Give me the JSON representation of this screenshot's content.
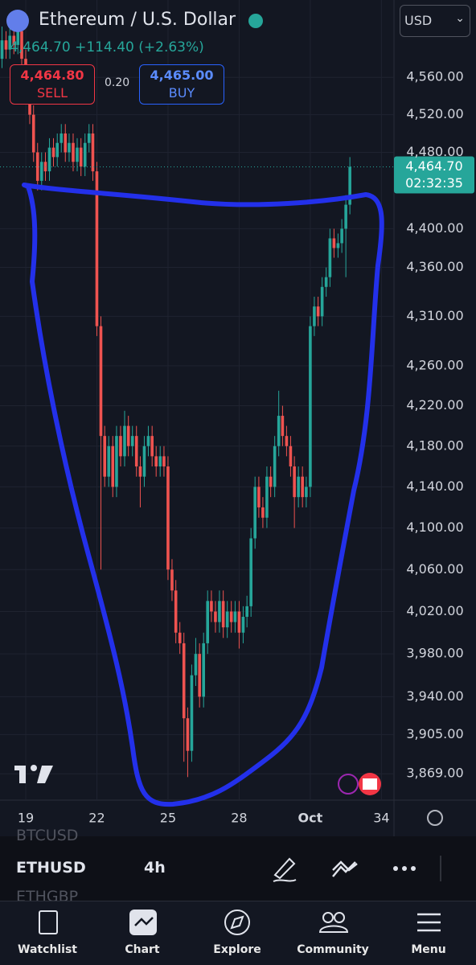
{
  "header": {
    "title": "Ethereum / U.S. Dollar",
    "currency": "USD",
    "last": "4,464.70",
    "change": "+114.40",
    "change_pct": "(+2.63%)",
    "sell_price": "4,464.80",
    "sell_label": "SELL",
    "spread": "0.20",
    "buy_price": "4,465.00",
    "buy_label": "BUY"
  },
  "price_marker": {
    "price": "4,464.70",
    "countdown": "02:32:35"
  },
  "chart_data": {
    "type": "candlestick",
    "log_scale": true,
    "grid": true,
    "up_color": "#26a69a",
    "down_color": "#ef5350",
    "x": [
      18,
      18.17,
      18.33,
      18.5,
      18.67,
      18.83,
      19,
      19.17,
      19.33,
      19.5,
      19.67,
      19.83,
      20,
      20.17,
      20.33,
      20.5,
      20.67,
      20.83,
      21,
      21.17,
      21.33,
      21.5,
      21.67,
      21.83,
      22,
      22.17,
      22.33,
      22.5,
      22.67,
      22.83,
      23,
      23.17,
      23.33,
      23.5,
      23.67,
      23.83,
      24,
      24.17,
      24.33,
      24.5,
      24.67,
      24.83,
      25,
      25.17,
      25.33,
      25.5,
      25.67,
      25.83,
      26,
      26.17,
      26.33,
      26.5,
      26.67,
      26.83,
      27,
      27.17,
      27.33,
      27.5,
      27.67,
      27.83,
      28,
      28.17,
      28.33,
      28.5,
      28.67,
      28.83,
      29,
      29.17,
      29.33,
      29.5,
      29.67,
      29.83,
      30,
      30.17,
      30.33,
      30.5,
      30.67,
      30.83,
      31,
      31.17,
      31.33,
      31.5,
      31.67,
      31.83,
      32,
      32.17,
      32.33,
      32.5,
      32.67
    ],
    "open": [
      4580,
      4600,
      4590,
      4605,
      4595,
      4610,
      4580,
      4560,
      4520,
      4480,
      4450,
      4470,
      4460,
      4485,
      4475,
      4490,
      4500,
      4480,
      4490,
      4470,
      4485,
      4465,
      4490,
      4500,
      4460,
      4300,
      4190,
      4150,
      4180,
      4140,
      4190,
      4170,
      4200,
      4180,
      4190,
      4160,
      4150,
      4180,
      4190,
      4170,
      4160,
      4170,
      4160,
      4060,
      4040,
      4000,
      3990,
      3920,
      3890,
      3960,
      3980,
      3940,
      3990,
      4030,
      4020,
      4010,
      4030,
      4005,
      4020,
      4010,
      4020,
      4000,
      4015,
      4025,
      4090,
      4140,
      4120,
      4110,
      4150,
      4140,
      4180,
      4210,
      4190,
      4180,
      4160,
      4130,
      4150,
      4130,
      4140,
      4300,
      4320,
      4310,
      4340,
      4350,
      4390,
      4380,
      4385,
      4400,
      4425
    ],
    "high": [
      4615,
      4610,
      4615,
      4615,
      4620,
      4620,
      4590,
      4570,
      4530,
      4490,
      4480,
      4480,
      4495,
      4495,
      4500,
      4510,
      4510,
      4500,
      4500,
      4495,
      4495,
      4500,
      4510,
      4510,
      4470,
      4310,
      4200,
      4190,
      4190,
      4200,
      4200,
      4215,
      4210,
      4200,
      4200,
      4170,
      4190,
      4200,
      4200,
      4180,
      4180,
      4180,
      4170,
      4070,
      4050,
      4010,
      4000,
      3930,
      3970,
      3995,
      3990,
      4000,
      4040,
      4040,
      4030,
      4040,
      4040,
      4030,
      4030,
      4030,
      4030,
      4025,
      4035,
      4100,
      4150,
      4150,
      4130,
      4160,
      4160,
      4190,
      4235,
      4220,
      4200,
      4190,
      4170,
      4160,
      4160,
      4150,
      4310,
      4330,
      4330,
      4350,
      4360,
      4400,
      4400,
      4395,
      4410,
      4435,
      4475
    ],
    "low": [
      4570,
      4580,
      4580,
      4585,
      4585,
      4570,
      4550,
      4510,
      4470,
      4440,
      4440,
      4450,
      4450,
      4465,
      4465,
      4480,
      4470,
      4470,
      4460,
      4460,
      4455,
      4455,
      4480,
      4450,
      4290,
      4060,
      4140,
      4140,
      4130,
      4130,
      4160,
      4160,
      4170,
      4170,
      4150,
      4120,
      4140,
      4170,
      4160,
      4150,
      4150,
      4150,
      4050,
      4030,
      3990,
      3980,
      3880,
      3866,
      3880,
      3950,
      3930,
      3930,
      3980,
      4010,
      4000,
      4000,
      3995,
      3995,
      4000,
      4000,
      3985,
      3990,
      4005,
      4015,
      4080,
      4110,
      4100,
      4100,
      4130,
      4130,
      4170,
      4180,
      4170,
      4150,
      4100,
      4120,
      4120,
      4120,
      4130,
      4290,
      4300,
      4300,
      4330,
      4340,
      4370,
      4370,
      4375,
      4350,
      4415
    ],
    "close": [
      4600,
      4590,
      4605,
      4595,
      4610,
      4580,
      4560,
      4520,
      4480,
      4450,
      4470,
      4460,
      4485,
      4475,
      4490,
      4500,
      4480,
      4490,
      4470,
      4485,
      4465,
      4490,
      4500,
      4460,
      4300,
      4190,
      4150,
      4180,
      4140,
      4190,
      4170,
      4200,
      4180,
      4190,
      4160,
      4150,
      4180,
      4190,
      4170,
      4160,
      4170,
      4160,
      4060,
      4040,
      4000,
      3990,
      3920,
      3890,
      3960,
      3980,
      3940,
      3990,
      4030,
      4020,
      4010,
      4030,
      4005,
      4020,
      4010,
      4020,
      4000,
      4015,
      4025,
      4090,
      4140,
      4120,
      4110,
      4150,
      4140,
      4180,
      4210,
      4190,
      4180,
      4160,
      4130,
      4150,
      4130,
      4140,
      4300,
      4320,
      4310,
      4340,
      4350,
      4390,
      4380,
      4385,
      4400,
      4425,
      4464.7
    ],
    "xlim": [
      17.915,
      34.53
    ],
    "xticks": [
      19,
      22,
      25,
      28,
      {
        "value": 31,
        "label": "Oct"
      },
      34
    ],
    "ylim": [
      3845,
      4644
    ],
    "yticks": [
      {
        "value": 4560,
        "label": "4,560.00"
      },
      {
        "value": 4520,
        "label": "4,520.00"
      },
      {
        "value": 4480,
        "label": "4,480.00"
      },
      {
        "value": 4400,
        "label": "4,400.00"
      },
      {
        "value": 4360,
        "label": "4,360.00"
      },
      {
        "value": 4310,
        "label": "4,310.00"
      },
      {
        "value": 4260,
        "label": "4,260.00"
      },
      {
        "value": 4220,
        "label": "4,220.00"
      },
      {
        "value": 4180,
        "label": "4,180.00"
      },
      {
        "value": 4140,
        "label": "4,140.00"
      },
      {
        "value": 4100,
        "label": "4,100.00"
      },
      {
        "value": 4060,
        "label": "4,060.00"
      },
      {
        "value": 4020,
        "label": "4,020.00"
      },
      {
        "value": 3980,
        "label": "3,980.00"
      },
      {
        "value": 3940,
        "label": "3,940.00"
      },
      {
        "value": 3905,
        "label": "3,905.00"
      },
      {
        "value": 3869,
        "label": "3,869.00"
      }
    ]
  },
  "symbols": {
    "previous": "BTCUSD",
    "current": "ETHUSD",
    "interval": "4h",
    "next": "ETHGBP"
  },
  "nav": [
    "Watchlist",
    "Chart",
    "Explore",
    "Community",
    "Menu"
  ]
}
